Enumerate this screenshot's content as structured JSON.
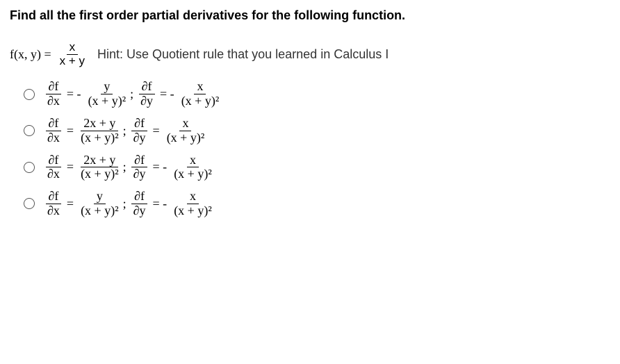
{
  "title": "Find all the first order partial derivatives for the following function.",
  "hint": "Hint: Use Quotient rule that you learned in Calculus I",
  "func_lhs": "f(x, y) =",
  "frac_main_num": "x",
  "frac_main_den": "x + y",
  "dfx_num": "∂f",
  "dfx_den": "∂x",
  "dfy_num": "∂f",
  "dfy_den": "∂y",
  "opt1_dx_sign": "= -",
  "opt1_dx_num": "y",
  "opt1_dx_den": "(x + y)²",
  "opt1_dy_sign": "= -",
  "opt1_dy_num": "x",
  "opt1_dy_den": "(x + y)²",
  "opt2_dx_sign": "=",
  "opt2_dx_num": "2x + y",
  "opt2_dx_den": "(x + y)²",
  "opt2_dy_sign": "=",
  "opt2_dy_num": "x",
  "opt2_dy_den": "(x + y)²",
  "opt3_dx_sign": "=",
  "opt3_dx_num": "2x + y",
  "opt3_dx_den": "(x + y)²",
  "opt3_dy_sign": "= -",
  "opt3_dy_num": "x",
  "opt3_dy_den": "(x + y)²",
  "opt4_dx_sign": "=",
  "opt4_dx_num": "y",
  "opt4_dx_den": "(x + y)²",
  "opt4_dy_sign": "= -",
  "opt4_dy_num": "x",
  "opt4_dy_den": "(x + y)²",
  "semicolon": ";"
}
